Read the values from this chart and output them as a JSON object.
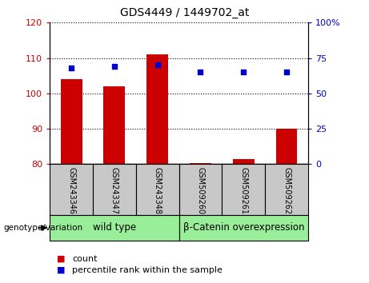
{
  "title": "GDS4449 / 1449702_at",
  "categories": [
    "GSM243346",
    "GSM243347",
    "GSM243348",
    "GSM509260",
    "GSM509261",
    "GSM509262"
  ],
  "bar_values": [
    104.0,
    102.0,
    111.0,
    80.3,
    81.5,
    90.0
  ],
  "bar_baseline": 80,
  "dot_values_pct": [
    68,
    69,
    70,
    65,
    65,
    65
  ],
  "ylim_left": [
    80,
    120
  ],
  "ylim_right": [
    0,
    100
  ],
  "yticks_left": [
    80,
    90,
    100,
    110,
    120
  ],
  "yticks_right": [
    0,
    25,
    50,
    75,
    100
  ],
  "bar_color": "#cc0000",
  "dot_color": "#0000cc",
  "group1_label": "wild type",
  "group2_label": "β-Catenin overexpression",
  "group1_color": "#99ee99",
  "group2_color": "#99ee99",
  "genotype_label": "genotype/variation",
  "legend_count_label": "count",
  "legend_percentile_label": "percentile rank within the sample",
  "tick_color_left": "#cc0000",
  "tick_color_right": "#0000cc",
  "xlabel_bg_color": "#c8c8c8"
}
